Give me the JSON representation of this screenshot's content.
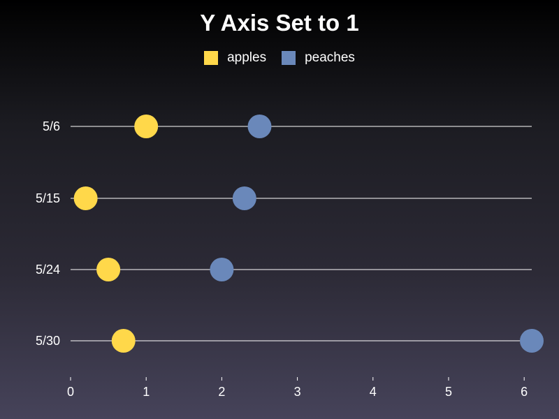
{
  "chart_data": {
    "type": "scatter",
    "title": "Y Axis Set to 1",
    "categories": [
      "5/6",
      "5/15",
      "5/24",
      "5/30"
    ],
    "series": [
      {
        "name": "apples",
        "color": "#ffd84a",
        "values": [
          1.0,
          0.2,
          0.5,
          0.7
        ]
      },
      {
        "name": "peaches",
        "color": "#6a88ba",
        "values": [
          2.5,
          2.3,
          2.0,
          6.1
        ]
      }
    ],
    "xlim": [
      0,
      6.1
    ],
    "x_ticks": [
      0,
      1,
      2,
      3,
      4,
      5,
      6
    ],
    "xlabel": "",
    "ylabel": "",
    "legend_position": "top-center",
    "grid": false
  }
}
